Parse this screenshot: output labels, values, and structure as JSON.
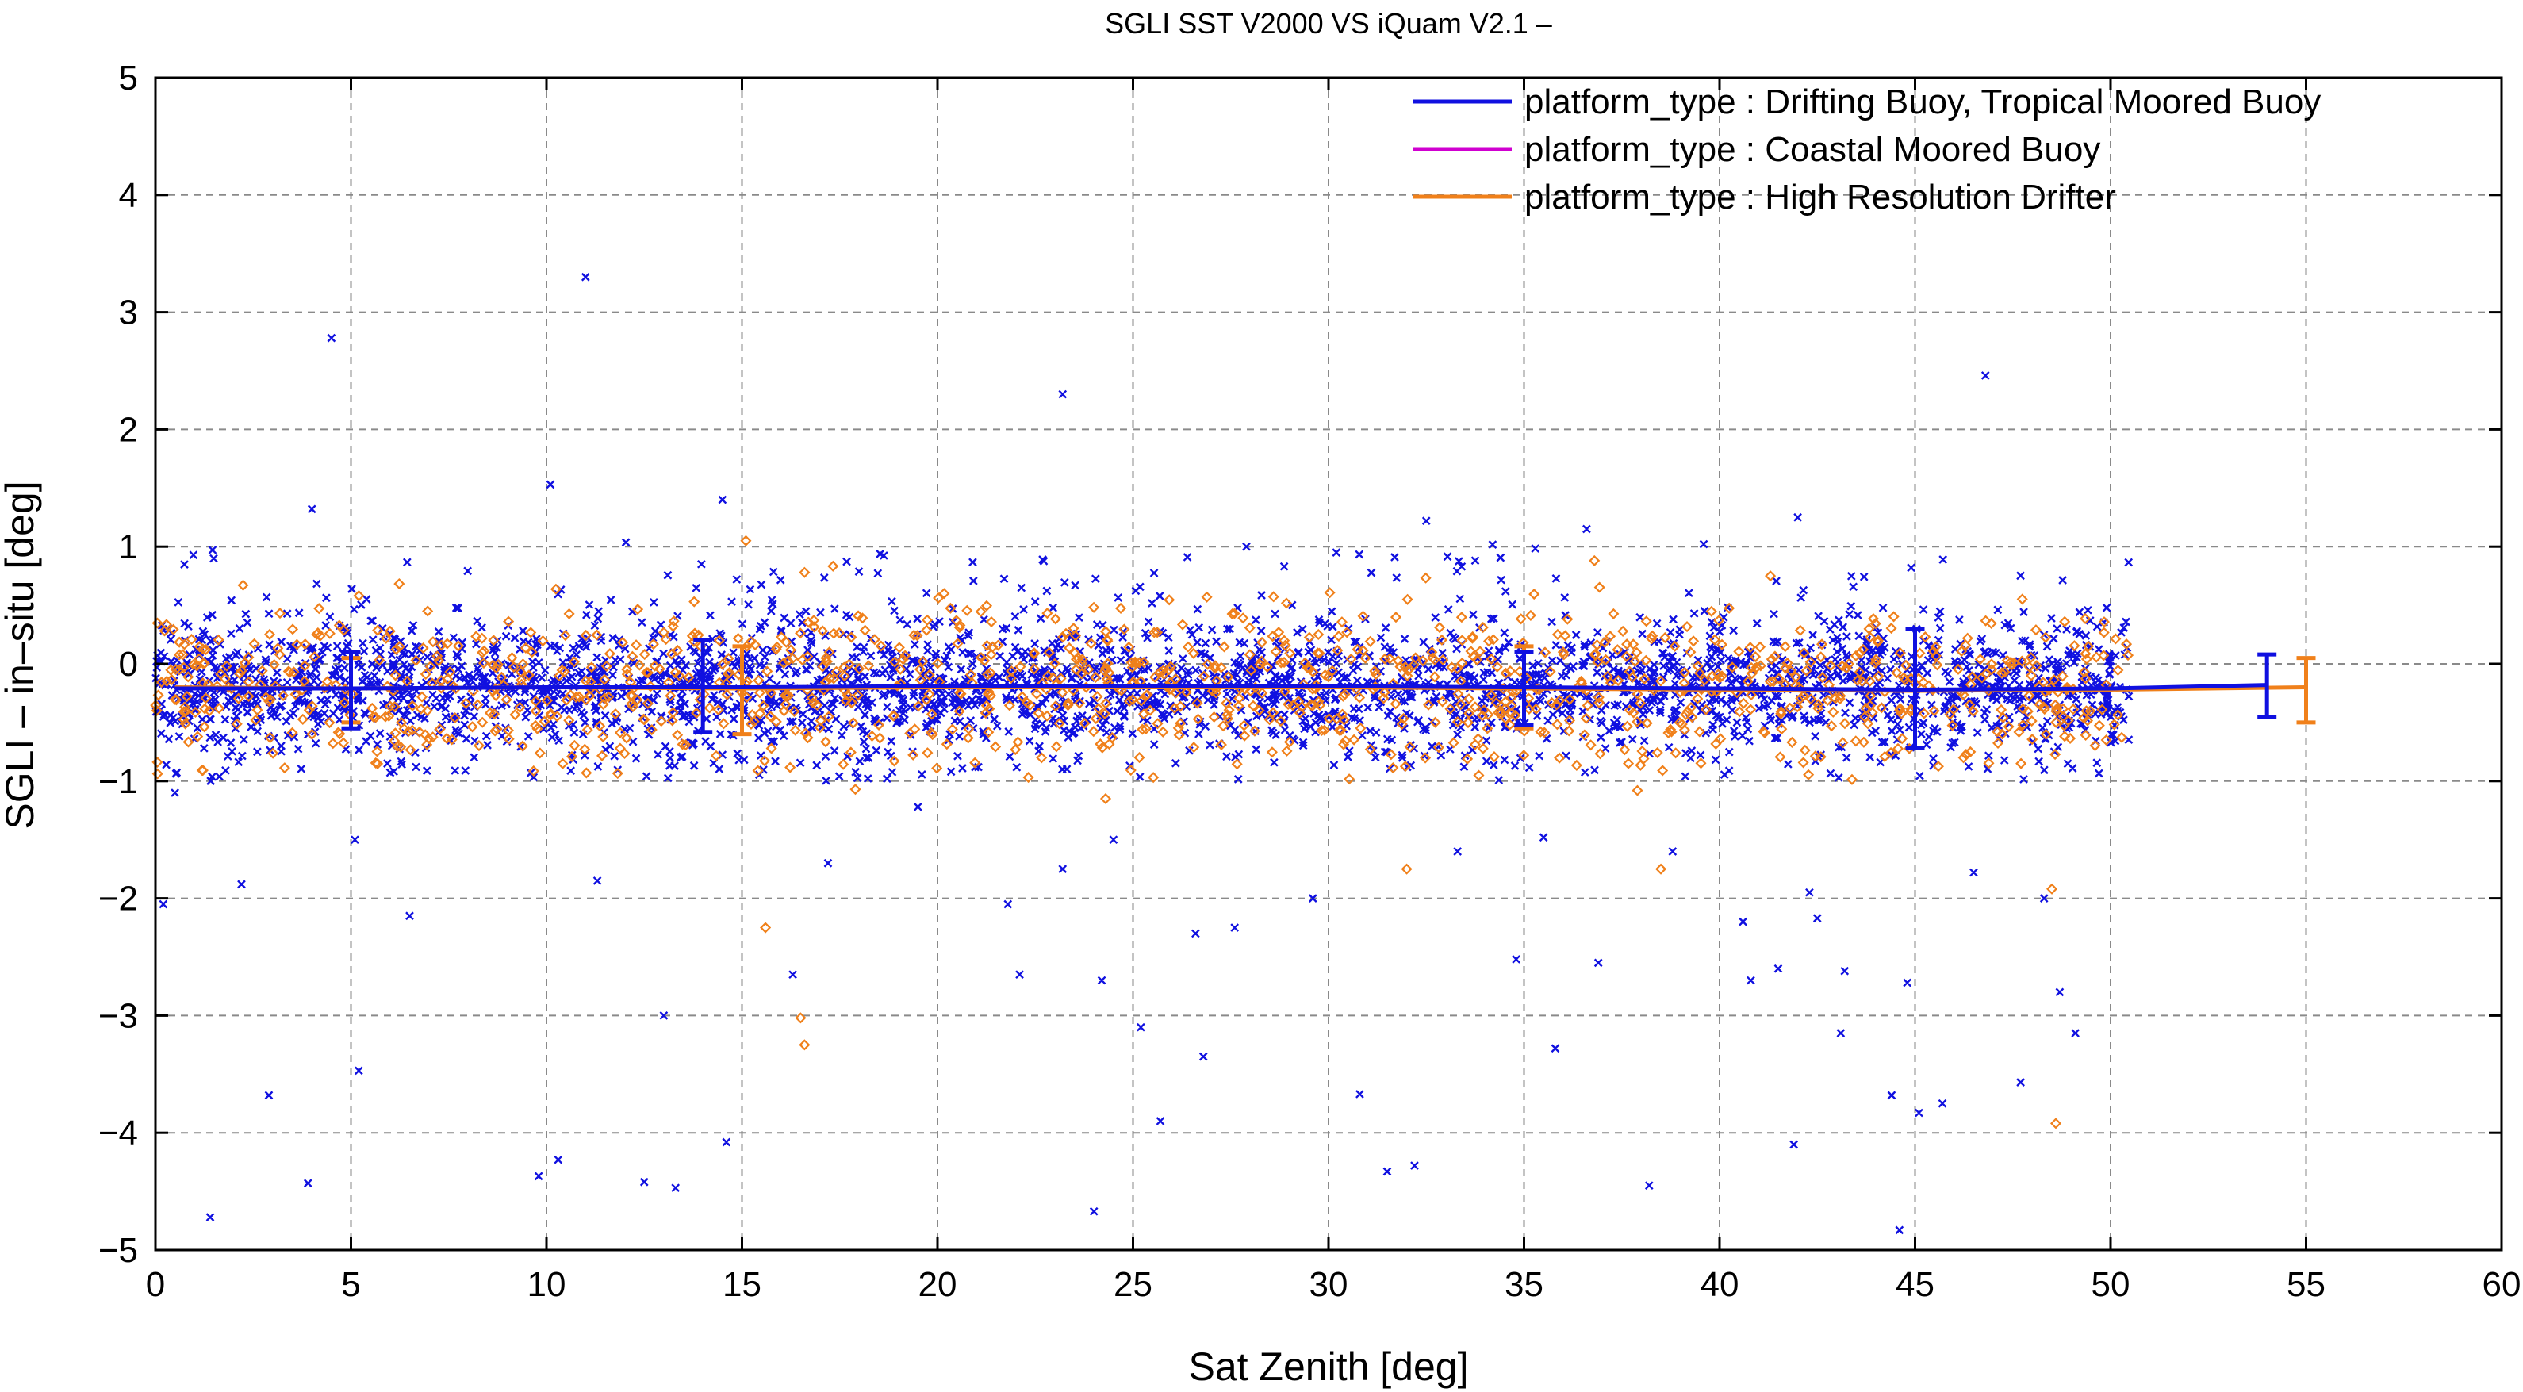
{
  "chart_data": {
    "type": "scatter",
    "title": "SGLI SST V2000 VS iQuam V2.1  –",
    "xlabel": "Sat Zenith [deg]",
    "ylabel": "SGLI – in–situ [deg]",
    "xlim": [
      0,
      60
    ],
    "ylim": [
      -5,
      5
    ],
    "xticks": [
      0,
      5,
      10,
      15,
      20,
      25,
      30,
      35,
      40,
      45,
      50,
      55,
      60
    ],
    "yticks": [
      -5,
      -4,
      -3,
      -2,
      -1,
      0,
      1,
      2,
      3,
      4,
      5
    ],
    "xtick_labels": [
      "0",
      "5",
      "10",
      "15",
      "20",
      "25",
      "30",
      "35",
      "40",
      "45",
      "50",
      "55",
      "60"
    ],
    "ytick_labels": [
      "−5",
      "−4",
      "−3",
      "−2",
      "−1",
      "0",
      "1",
      "2",
      "3",
      "4",
      "5"
    ],
    "grid": true,
    "legend_position": "top-right",
    "colors": {
      "drifting": "#1010e0",
      "coastal": "#d000d0",
      "hrd": "#f0801a"
    },
    "series": [
      {
        "name": "platform_type : Drifting Buoy, Tropical Moored Buoy",
        "color": "#1010e0",
        "marker": "x",
        "outliers": [
          [
            0.2,
            -2.05
          ],
          [
            0.5,
            -1.1
          ],
          [
            1.4,
            -4.72
          ],
          [
            2.2,
            -1.88
          ],
          [
            2.9,
            -3.68
          ],
          [
            3.9,
            -4.43
          ],
          [
            4.5,
            2.78
          ],
          [
            4.0,
            1.32
          ],
          [
            5.2,
            -3.47
          ],
          [
            5.1,
            -1.5
          ],
          [
            6.5,
            -2.15
          ],
          [
            9.8,
            -4.37
          ],
          [
            10.3,
            -4.23
          ],
          [
            10.1,
            1.53
          ],
          [
            11.0,
            3.3
          ],
          [
            11.3,
            -1.85
          ],
          [
            12.5,
            -4.42
          ],
          [
            13.0,
            -3.0
          ],
          [
            13.3,
            -4.47
          ],
          [
            14.6,
            -4.08
          ],
          [
            14.5,
            1.4
          ],
          [
            16.3,
            -2.65
          ],
          [
            17.2,
            -1.7
          ],
          [
            21.8,
            -2.05
          ],
          [
            22.1,
            -2.65
          ],
          [
            23.2,
            2.3
          ],
          [
            23.2,
            -1.75
          ],
          [
            24.0,
            -4.67
          ],
          [
            24.2,
            -2.7
          ],
          [
            24.5,
            -1.5
          ],
          [
            25.2,
            -3.1
          ],
          [
            25.7,
            -3.9
          ],
          [
            26.6,
            -2.3
          ],
          [
            26.8,
            -3.35
          ],
          [
            27.6,
            -2.25
          ],
          [
            29.6,
            -2.0
          ],
          [
            30.8,
            -3.67
          ],
          [
            31.5,
            -4.33
          ],
          [
            32.2,
            -4.28
          ],
          [
            32.5,
            1.22
          ],
          [
            33.3,
            -1.6
          ],
          [
            34.8,
            -2.52
          ],
          [
            35.8,
            -3.28
          ],
          [
            36.9,
            -2.55
          ],
          [
            38.2,
            -4.45
          ],
          [
            38.8,
            -1.6
          ],
          [
            40.6,
            -2.2
          ],
          [
            40.8,
            -2.7
          ],
          [
            41.5,
            -2.6
          ],
          [
            41.9,
            -4.1
          ],
          [
            42.3,
            -1.95
          ],
          [
            42.5,
            -2.17
          ],
          [
            43.1,
            -3.15
          ],
          [
            43.2,
            -2.62
          ],
          [
            44.4,
            -3.68
          ],
          [
            44.6,
            -4.83
          ],
          [
            44.8,
            -2.72
          ],
          [
            45.1,
            -3.83
          ],
          [
            45.7,
            -3.75
          ],
          [
            46.5,
            -1.78
          ],
          [
            46.8,
            2.46
          ],
          [
            47.7,
            -3.57
          ],
          [
            48.3,
            -2.0
          ],
          [
            48.7,
            -2.8
          ],
          [
            49.1,
            -3.15
          ],
          [
            35.5,
            -1.48
          ],
          [
            19.5,
            -1.22
          ],
          [
            27.9,
            1.0
          ],
          [
            30.2,
            0.95
          ],
          [
            36.6,
            1.15
          ],
          [
            42.0,
            1.25
          ],
          [
            44.9,
            0.82
          ]
        ],
        "binned_mean": [
          [
            0.5,
            -0.21
          ],
          [
            5,
            -0.21
          ],
          [
            10,
            -0.2
          ],
          [
            15,
            -0.2
          ],
          [
            20,
            -0.19
          ],
          [
            25,
            -0.19
          ],
          [
            30,
            -0.19
          ],
          [
            35,
            -0.2
          ],
          [
            40,
            -0.21
          ],
          [
            45,
            -0.22
          ],
          [
            50,
            -0.21
          ],
          [
            54,
            -0.18
          ]
        ],
        "error_bars": [
          {
            "x": 5,
            "y": -0.22,
            "low": -0.55,
            "high": 0.1
          },
          {
            "x": 14,
            "y": -0.2,
            "low": -0.58,
            "high": 0.2
          },
          {
            "x": 35,
            "y": -0.2,
            "low": -0.52,
            "high": 0.1
          },
          {
            "x": 45,
            "y": -0.22,
            "low": -0.72,
            "high": 0.3
          },
          {
            "x": 54,
            "y": -0.18,
            "low": -0.45,
            "high": 0.08
          }
        ]
      },
      {
        "name": "platform_type : Coastal Moored Buoy",
        "color": "#d000d0",
        "marker": "x",
        "outliers": []
      },
      {
        "name": "platform_type : High Resolution Drifter",
        "color": "#f0801a",
        "marker": "diamond",
        "outliers": [
          [
            15.6,
            -2.25
          ],
          [
            16.6,
            -3.25
          ],
          [
            16.5,
            -3.02
          ],
          [
            48.5,
            -1.92
          ],
          [
            48.6,
            -3.92
          ],
          [
            38.5,
            -1.75
          ],
          [
            17.9,
            -1.07
          ],
          [
            15.1,
            1.05
          ],
          [
            16.6,
            0.78
          ],
          [
            36.8,
            0.88
          ],
          [
            41.3,
            0.75
          ],
          [
            32.0,
            -1.75
          ],
          [
            37.9,
            -1.08
          ],
          [
            24.3,
            -1.15
          ]
        ],
        "binned_mean": [
          [
            0.5,
            -0.2
          ],
          [
            5,
            -0.21
          ],
          [
            10,
            -0.2
          ],
          [
            15,
            -0.21
          ],
          [
            20,
            -0.2
          ],
          [
            25,
            -0.2
          ],
          [
            30,
            -0.2
          ],
          [
            35,
            -0.21
          ],
          [
            40,
            -0.22
          ],
          [
            45,
            -0.23
          ],
          [
            50,
            -0.22
          ],
          [
            55,
            -0.2
          ]
        ],
        "error_bars": [
          {
            "x": 5,
            "y": -0.21,
            "low": -0.5,
            "high": 0.05
          },
          {
            "x": 15,
            "y": -0.21,
            "low": -0.6,
            "high": 0.15
          },
          {
            "x": 35,
            "y": -0.21,
            "low": -0.55,
            "high": 0.15
          },
          {
            "x": 55,
            "y": -0.2,
            "low": -0.5,
            "high": 0.05
          }
        ]
      }
    ],
    "bulk_cloud": {
      "x_range": [
        0,
        50.5
      ],
      "center": -0.2,
      "spread": 0.25,
      "extended_spread": 0.55,
      "blue_points": 9000,
      "orange_points": 1200
    }
  }
}
